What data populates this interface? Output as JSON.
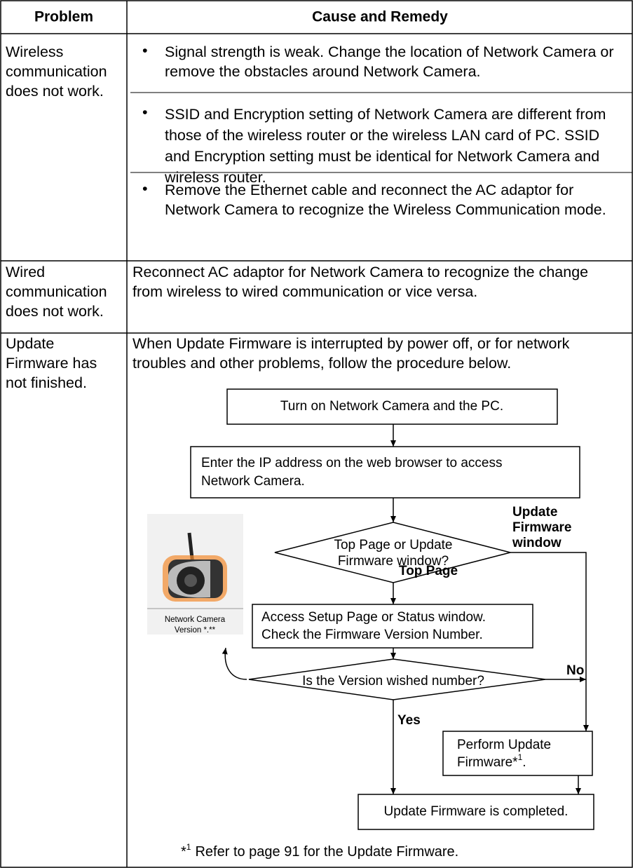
{
  "header": {
    "problem": "Problem",
    "cause": "Cause and Remedy"
  },
  "rows": [
    {
      "problem": [
        "Wireless",
        "communication",
        "does not work."
      ],
      "remedies": [
        "Signal strength is weak. Change the location of Network Camera or remove the obstacles around Network Camera.",
        "SSID and Encryption setting of Network Camera are different from those of the wireless router or the wireless LAN card of PC. SSID and Encryption setting must be identical for Network Camera and wireless router.",
        "Remove the Ethernet cable and reconnect the AC adaptor for Network Camera to recognize the Wireless Communication mode."
      ]
    },
    {
      "problem": [
        "Wired",
        "communication",
        "does not work."
      ],
      "remedy": "Reconnect AC adaptor for Network Camera to recognize the change from wireless to wired communication or vice versa."
    },
    {
      "problem": [
        "Update",
        "Firmware has",
        "not finished."
      ],
      "remedy": "When Update Firmware is interrupted by power off, or for network troubles and other problems, follow the procedure below.",
      "flowchart": {
        "start": "Turn on Network Camera and the PC.",
        "access": [
          "Enter the IP address on the web browser to access",
          "Network Camera."
        ],
        "decision1": [
          "Top Page or Update",
          "Firmware window?"
        ],
        "branch_update": [
          "Update",
          "Firmware",
          "window"
        ],
        "branch_top": "Top Page",
        "check": [
          "Access Setup Page or Status window.",
          "Check the Firmware Version Number."
        ],
        "decision2": "Is the Version wished number?",
        "no": "No",
        "yes": "Yes",
        "perform": {
          "lines": [
            "Perform Update",
            "Firmware*"
          ],
          "sup": "1",
          "after": "."
        },
        "done": "Update Firmware is completed.",
        "camera_caption": [
          "Network Camera",
          "Version *.**"
        ]
      },
      "footnote": {
        "mark": "*",
        "sup": "1",
        "text": "Refer to page 91 for the Update Firmware."
      }
    }
  ]
}
